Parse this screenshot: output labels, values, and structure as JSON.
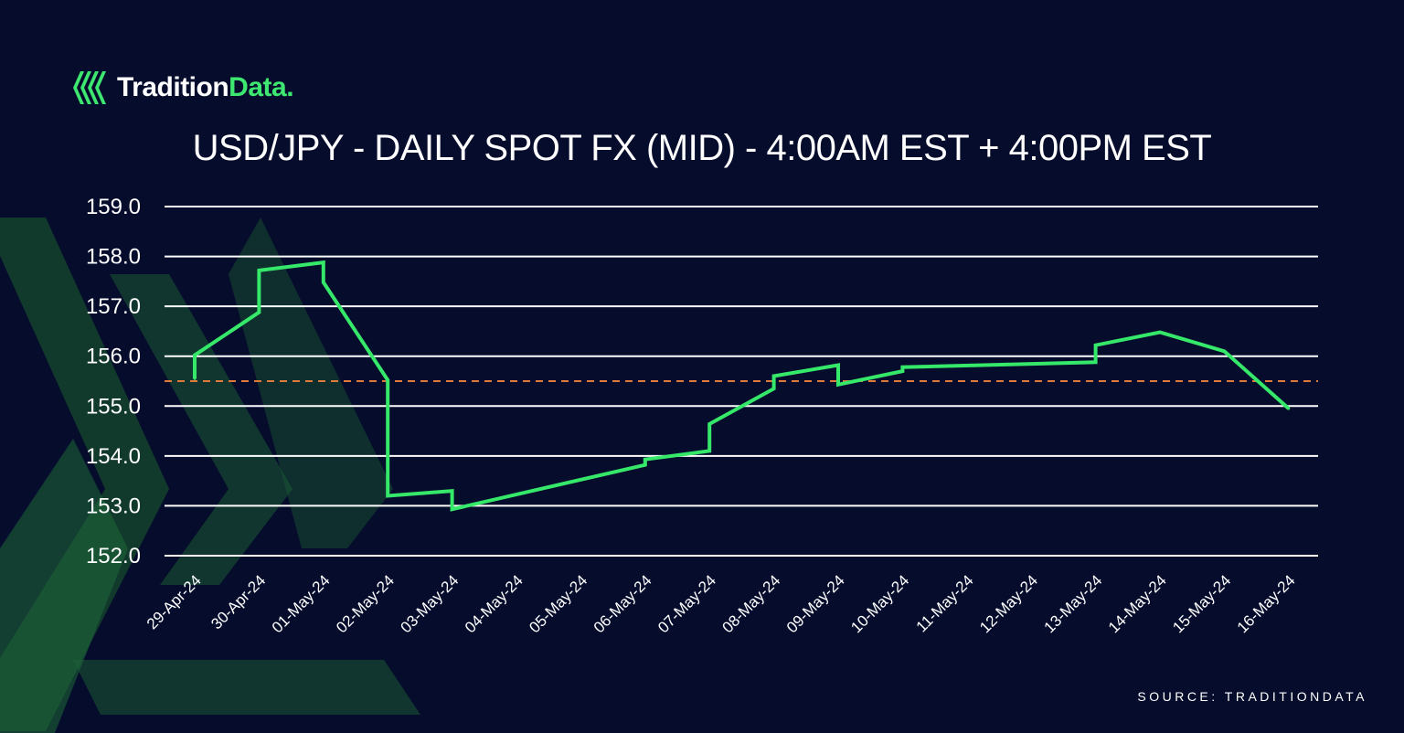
{
  "brand": {
    "name_part1": "Tradition",
    "name_part2": "Data.",
    "icon": "tradition-data-logo-icon"
  },
  "title": "USD/JPY - DAILY SPOT FX (MID) - 4:00AM EST + 4:00PM EST",
  "source": "SOURCE: TRADITIONDATA",
  "colors": {
    "background": "#060c2c",
    "line": "#36e86a",
    "reference": "#e07a3a",
    "grid": "#ffffff",
    "accent": "#3ee870",
    "decor": "#1b5a34"
  },
  "chart_data": {
    "type": "line",
    "title": "USD/JPY - DAILY SPOT FX (MID) - 4:00AM EST + 4:00PM EST",
    "xlabel": "",
    "ylabel": "",
    "categories": [
      "29-Apr-24",
      "30-Apr-24",
      "01-May-24",
      "02-May-24",
      "03-May-24",
      "04-May-24",
      "05-May-24",
      "06-May-24",
      "07-May-24",
      "08-May-24",
      "09-May-24",
      "10-May-24",
      "11-May-24",
      "12-May-24",
      "13-May-24",
      "14-May-24",
      "15-May-24",
      "16-May-24"
    ],
    "ylim": [
      152.0,
      159.0
    ],
    "yticks": [
      "152.0",
      "153.0",
      "154.0",
      "155.0",
      "156.0",
      "157.0",
      "158.0",
      "159.0"
    ],
    "grid": true,
    "legend": "none",
    "reference_line": {
      "value": 155.5,
      "style": "dashed"
    },
    "series": [
      {
        "points": [
          {
            "x": "29-Apr-24",
            "y": 155.55
          },
          {
            "x": "29-Apr-24",
            "y": 156.02
          },
          {
            "x": "30-Apr-24",
            "y": 156.88
          },
          {
            "x": "30-Apr-24",
            "y": 157.72
          },
          {
            "x": "01-May-24",
            "y": 157.88
          },
          {
            "x": "01-May-24",
            "y": 157.48
          },
          {
            "x": "02-May-24",
            "y": 155.52
          },
          {
            "x": "02-May-24",
            "y": 153.2
          },
          {
            "x": "03-May-24",
            "y": 153.3
          },
          {
            "x": "03-May-24",
            "y": 152.93
          },
          {
            "x": "06-May-24",
            "y": 153.82
          },
          {
            "x": "06-May-24",
            "y": 153.93
          },
          {
            "x": "07-May-24",
            "y": 154.1
          },
          {
            "x": "07-May-24",
            "y": 154.64
          },
          {
            "x": "08-May-24",
            "y": 155.35
          },
          {
            "x": "08-May-24",
            "y": 155.6
          },
          {
            "x": "09-May-24",
            "y": 155.82
          },
          {
            "x": "09-May-24",
            "y": 155.43
          },
          {
            "x": "10-May-24",
            "y": 155.7
          },
          {
            "x": "10-May-24",
            "y": 155.78
          },
          {
            "x": "13-May-24",
            "y": 155.88
          },
          {
            "x": "13-May-24",
            "y": 156.22
          },
          {
            "x": "14-May-24",
            "y": 156.48
          },
          {
            "x": "15-May-24",
            "y": 156.1
          },
          {
            "x": "16-May-24",
            "y": 154.95
          }
        ]
      }
    ]
  }
}
